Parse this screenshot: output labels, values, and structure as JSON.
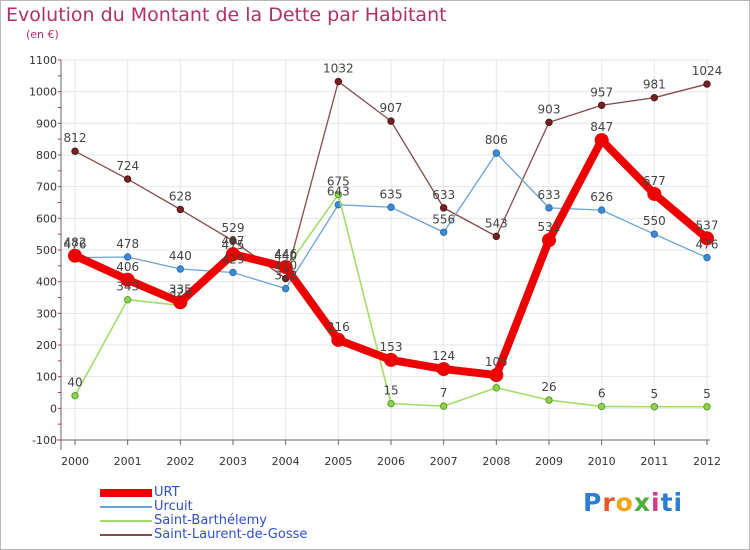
{
  "title": "Evolution du Montant de la Dette par Habitant",
  "subtitle": "(en €)",
  "logo": {
    "text": "Prox",
    "mark": "i",
    "text2": "ti",
    "colors": [
      "#2a7fd4",
      "#e8572a",
      "#f2a615",
      "#4caf3a",
      "#d03a8c",
      "#2a7fd4"
    ]
  },
  "chart_data": {
    "type": "line",
    "x": [
      "2000",
      "2001",
      "2002",
      "2003",
      "2004",
      "2005",
      "2006",
      "2007",
      "2008",
      "2009",
      "2010",
      "2011",
      "2012"
    ],
    "ylim": [
      -100,
      1100
    ],
    "yticks": [
      -100,
      0,
      100,
      200,
      300,
      400,
      500,
      600,
      700,
      800,
      900,
      1000,
      1100
    ],
    "grid": true,
    "legend_position": "bottom-left",
    "series": [
      {
        "name": "URT",
        "color": "#ee0000",
        "values": [
          482,
          406,
          335,
          487,
          446,
          216,
          153,
          124,
          105,
          531,
          847,
          677,
          537
        ]
      },
      {
        "name": "Urcuit",
        "color": "#6aa3d5",
        "values": [
          476,
          478,
          440,
          429,
          378,
          643,
          635,
          556,
          806,
          633,
          626,
          550,
          476
        ]
      },
      {
        "name": "Saint-Barthélemy",
        "color": "#a0de6a",
        "values": [
          40,
          343,
          325,
          475,
          440,
          675,
          15,
          7,
          65,
          26,
          6,
          5,
          5
        ]
      },
      {
        "name": "Saint-Laurent-de-Gosse",
        "color": "#8a4848",
        "values": [
          812,
          724,
          628,
          529,
          410,
          1032,
          907,
          633,
          543,
          903,
          957,
          981,
          1024
        ]
      }
    ],
    "data_labels": [
      [
        "482",
        "406",
        "335",
        "487",
        "446",
        "216",
        "153",
        "124",
        "105",
        "531",
        "847",
        "677",
        "537"
      ],
      [
        "476",
        "478",
        "440",
        "429",
        "378",
        "643",
        "635",
        "556",
        "806",
        "633",
        "626",
        "550",
        "476"
      ],
      [
        "40",
        "343",
        "325",
        "475",
        "440",
        "675",
        "15",
        "7",
        "",
        "26",
        "6",
        "5",
        "5"
      ],
      [
        "812",
        "724",
        "628",
        "529",
        "410",
        "1032",
        "907",
        "633",
        "543",
        "903",
        "957",
        "981",
        "1024"
      ]
    ]
  }
}
